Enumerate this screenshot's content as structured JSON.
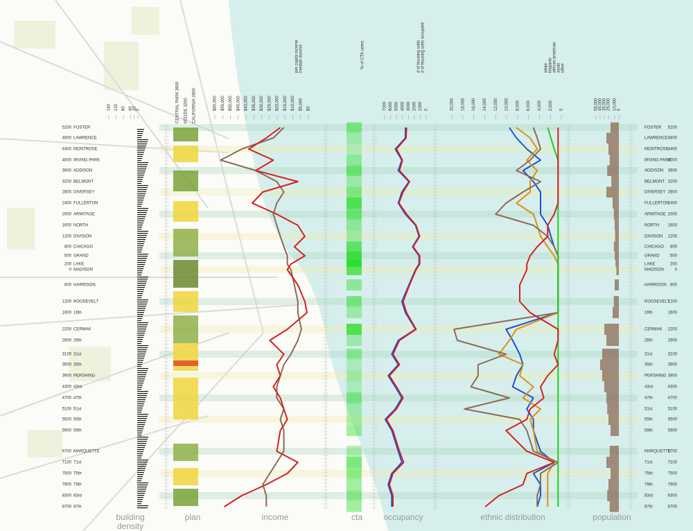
{
  "streets": [
    {
      "number": "5200",
      "name": "FOSTER"
    },
    {
      "number": "4800",
      "name": "LAWRENCE"
    },
    {
      "number": "4400",
      "name": "MONTROSE"
    },
    {
      "number": "4000",
      "name": "IRVING PARK"
    },
    {
      "number": "3600",
      "name": "ADDISON"
    },
    {
      "number": "3200",
      "name": "BELMONT"
    },
    {
      "number": "2800",
      "name": "DIVERSEY"
    },
    {
      "number": "2400",
      "name": "FULLERTON"
    },
    {
      "number": "2000",
      "name": "ARMITAGE"
    },
    {
      "number": "1600",
      "name": "NORTH"
    },
    {
      "number": "1200",
      "name": "DIVISION"
    },
    {
      "number": "800",
      "name": "CHICAGO"
    },
    {
      "number": "500",
      "name": "GRAND"
    },
    {
      "number": "200",
      "name": "LAKE"
    },
    {
      "number": "0",
      "name": "MADISON"
    },
    {
      "number": "600",
      "name": "HARRISON"
    },
    {
      "number": "1200",
      "name": "ROOSEVELT"
    },
    {
      "number": "1600",
      "name": "16th"
    },
    {
      "number": "2200",
      "name": "CERMAK"
    },
    {
      "number": "2600",
      "name": "26th"
    },
    {
      "number": "3100",
      "name": "31st"
    },
    {
      "number": "3500",
      "name": "35th"
    },
    {
      "number": "3900",
      "name": "PERSHING"
    },
    {
      "number": "4300",
      "name": "43rd"
    },
    {
      "number": "4700",
      "name": "47th"
    },
    {
      "number": "5100",
      "name": "51st"
    },
    {
      "number": "5500",
      "name": "55th"
    },
    {
      "number": "5900",
      "name": "59th"
    },
    {
      "number": "6700",
      "name": "MARQUETTE"
    },
    {
      "number": "7100",
      "name": "71st"
    },
    {
      "number": "7500",
      "name": "75th"
    },
    {
      "number": "7900",
      "name": "79th"
    },
    {
      "number": "8300",
      "name": "83rd"
    },
    {
      "number": "8700",
      "name": "87th"
    }
  ],
  "columns": {
    "density": [
      "building",
      "density"
    ],
    "plan": "plan",
    "income": "income",
    "cta": "cta",
    "occupancy": "occupancy",
    "ethnic": "ethnic distribution",
    "population": "population"
  },
  "density": {
    "xlim": [
      160,
      0
    ],
    "xticks": [
      160,
      120,
      80,
      40,
      20,
      0
    ]
  },
  "plan": {
    "labels": [
      "CENTRAL PARK 3600",
      "KEDZIE 3200",
      "CALIFORNIA 2800"
    ]
  },
  "income": {
    "xlim": [
      60000,
      0
    ],
    "xticks": [
      {
        "value": 60000,
        "label": "$60,000"
      },
      {
        "value": 55000,
        "label": "$55,000"
      },
      {
        "value": 50000,
        "label": "$50,000"
      },
      {
        "value": 45000,
        "label": "$45,000"
      },
      {
        "value": 40000,
        "label": "$40,000"
      },
      {
        "value": 35000,
        "label": "$35,000"
      },
      {
        "value": 30000,
        "label": "$30,000"
      },
      {
        "value": 25000,
        "label": "$25,000"
      },
      {
        "value": 20000,
        "label": "$20,000"
      },
      {
        "value": 15000,
        "label": "$15,000"
      },
      {
        "value": 10000,
        "label": "$10,000"
      },
      {
        "value": 5000,
        "label": "$5,000"
      },
      {
        "value": 0,
        "label": "$0"
      }
    ],
    "series": [
      {
        "name": "per capita income",
        "color": "#8b6a55",
        "values": [
          15750,
          22500,
          42750,
          56250,
          33750,
          20250,
          15750,
          20250,
          22500,
          20250,
          18000,
          15750,
          13500,
          13500,
          11250,
          9000,
          6750,
          6750,
          4500,
          6750,
          11250,
          15750,
          18000,
          20250,
          20250,
          15750,
          18000,
          15750,
          15750,
          20250,
          24750,
          29250,
          27000,
          27000
        ]
      },
      {
        "name": "median income",
        "color": "#d42020",
        "values": [
          18000,
          27000,
          38250,
          22500,
          33750,
          6750,
          29250,
          36000,
          20250,
          6750,
          2250,
          9000,
          2250,
          11250,
          13500,
          6750,
          2250,
          900,
          13500,
          24750,
          15750,
          20250,
          18000,
          22500,
          18000,
          15750,
          13500,
          18000,
          20250,
          6750,
          13500,
          27000,
          42750,
          54000
        ]
      }
    ]
  },
  "cta": {
    "label": "% of CTA users",
    "color": "#1fdc1f",
    "values": [
      40,
      20,
      10,
      30,
      50,
      20,
      40,
      70,
      50,
      30,
      20,
      60,
      80,
      90,
      60,
      30,
      40,
      20,
      70,
      20,
      30,
      10,
      20,
      10,
      40,
      20,
      20,
      30,
      20,
      50,
      40,
      30,
      40,
      30
    ]
  },
  "occupancy": {
    "xlim": [
      7000,
      0
    ],
    "xticks": [
      7000,
      6000,
      5000,
      4000,
      3000,
      2000,
      1000,
      0
    ],
    "series": [
      {
        "name": "# of housing units",
        "color": "#1f4fd8",
        "values": [
          3500,
          3500,
          5200,
          4100,
          4700,
          2900,
          4100,
          4700,
          3500,
          1800,
          1200,
          2300,
          1200,
          1200,
          1800,
          2900,
          4100,
          3500,
          1800,
          4700,
          5800,
          4700,
          6400,
          5200,
          4100,
          5200,
          6900,
          5800,
          4700,
          4100,
          5800,
          6400,
          5800,
          5800
        ]
      },
      {
        "name": "# of housing units occupied",
        "color": "#d42020",
        "values": [
          3300,
          3400,
          5000,
          4000,
          4500,
          2800,
          3900,
          4600,
          3300,
          1700,
          1100,
          2200,
          1100,
          1100,
          1700,
          2800,
          3900,
          3300,
          1700,
          4500,
          5600,
          4500,
          6200,
          5000,
          3900,
          5000,
          6700,
          5600,
          4500,
          3800,
          5600,
          6200,
          5600,
          5600
        ]
      }
    ]
  },
  "ethnic": {
    "xlim": [
      20000,
      0
    ],
    "xticks": [
      {
        "value": 20000,
        "label": "20,000"
      },
      {
        "value": 18000,
        "label": "18,000"
      },
      {
        "value": 16000,
        "label": "16,000"
      },
      {
        "value": 14000,
        "label": "14,000"
      },
      {
        "value": 12000,
        "label": "12,000"
      },
      {
        "value": 10000,
        "label": "10,000"
      },
      {
        "value": 8000,
        "label": "8,000"
      },
      {
        "value": 6000,
        "label": "6,000"
      },
      {
        "value": 4000,
        "label": "4,000"
      },
      {
        "value": 2000,
        "label": "2,000"
      },
      0
    ],
    "series": [
      {
        "name": "white",
        "color": "#1f4fd8",
        "values": [
          9500,
          8200,
          6300,
          3800,
          7000,
          5100,
          3800,
          3800,
          3800,
          2500,
          1900,
          1300,
          600,
          600,
          600,
          600,
          600,
          600,
          10100,
          8900,
          7600,
          7000,
          8200,
          8900,
          5100,
          6300,
          5100,
          5100,
          3800,
          1300,
          5100,
          3800,
          3800,
          4400
        ]
      },
      {
        "name": "hispanic",
        "color": "#e0900a",
        "values": [
          8200,
          5700,
          4400,
          6300,
          4400,
          5700,
          5700,
          8200,
          5100,
          4400,
          3800,
          2500,
          1300,
          600,
          600,
          600,
          600,
          600,
          8200,
          9500,
          11400,
          7000,
          7600,
          5100,
          7000,
          3800,
          5700,
          5100,
          4400,
          1300,
          2500,
          2500,
          2500,
          2500
        ]
      },
      {
        "name": "african american",
        "color": "#8b6a55",
        "values": [
          5100,
          4400,
          3800,
          5700,
          8200,
          3800,
          7000,
          10100,
          12000,
          5100,
          2500,
          1300,
          600,
          600,
          600,
          600,
          600,
          600,
          19600,
          19000,
          10100,
          15200,
          15200,
          16500,
          9500,
          17700,
          7600,
          6300,
          5100,
          600,
          3800,
          3800,
          4400,
          4400
        ]
      },
      {
        "name": "asian",
        "color": "#22cc22",
        "values": [
          2500,
          1900,
          1300,
          600,
          600,
          600,
          600,
          600,
          600,
          600,
          600,
          600,
          600,
          600,
          600,
          600,
          600,
          600,
          600,
          600,
          600,
          600,
          600,
          600,
          600,
          600,
          600,
          600,
          600,
          600,
          600,
          600,
          600,
          600
        ]
      },
      {
        "name": "other",
        "color": "#d42020",
        "values": [
          600,
          600,
          600,
          600,
          600,
          600,
          600,
          600,
          1300,
          2500,
          2500,
          4400,
          5700,
          6300,
          6300,
          7600,
          7600,
          5700,
          600,
          600,
          1300,
          600,
          2500,
          3800,
          3200,
          5700,
          6300,
          10100,
          6300,
          1300,
          6300,
          7000,
          11400,
          13900
        ]
      }
    ]
  },
  "population": {
    "xlim": [
      55000,
      0
    ],
    "xticks": [
      {
        "value": 55000,
        "label": "55,000"
      },
      {
        "value": 45000,
        "label": "45,000"
      },
      {
        "value": 35000,
        "label": "35,000"
      },
      {
        "value": 25000,
        "label": "25,000"
      },
      {
        "value": 10000,
        "label": "10,000"
      },
      0
    ],
    "color": "#8b6a55",
    "values": [
      20000,
      30000,
      25000,
      22000,
      28000,
      18000,
      30000,
      15000,
      12000,
      10000,
      9000,
      12000,
      10000,
      8000,
      6000,
      10000,
      12000,
      15000,
      35000,
      30000,
      40000,
      45000,
      40000,
      35000,
      30000,
      28000,
      25000,
      20000,
      22000,
      30000,
      20000,
      25000,
      28000,
      22000
    ]
  }
}
